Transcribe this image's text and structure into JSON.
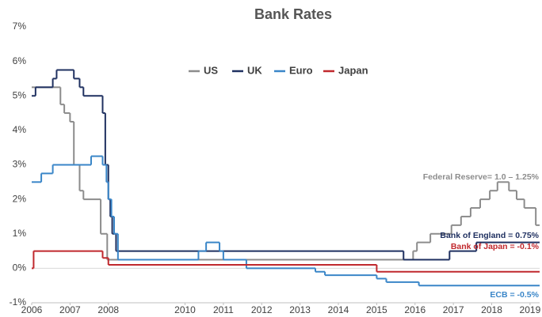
{
  "chart_data": {
    "type": "step-line",
    "title": "Bank Rates",
    "xlim": [
      2006,
      2019.25
    ],
    "xticks": [
      2006,
      2007,
      2008,
      2010,
      2011,
      2012,
      2013,
      2014,
      2015,
      2016,
      2017,
      2018,
      2019
    ],
    "ylim": [
      -1,
      7
    ],
    "yticks": [
      {
        "value": -1,
        "label": "-1%"
      },
      {
        "value": 0,
        "label": "0%"
      },
      {
        "value": 1,
        "label": "1%"
      },
      {
        "value": 2,
        "label": "2%"
      },
      {
        "value": 3,
        "label": "3%"
      },
      {
        "value": 4,
        "label": "4%"
      },
      {
        "value": 5,
        "label": "5%"
      },
      {
        "value": 6,
        "label": "6%"
      },
      {
        "value": 7,
        "label": "7%"
      }
    ],
    "grid": false,
    "legend": "top",
    "series": [
      {
        "name": "US",
        "color": "#8c8c8c",
        "x": [
          2006,
          2006.75,
          2006.85,
          2007.0,
          2007.1,
          2007.25,
          2007.35,
          2007.8,
          2007.97,
          2015.95,
          2016.05,
          2016.4,
          2016.95,
          2017.2,
          2017.45,
          2017.7,
          2017.95,
          2018.15,
          2018.45,
          2018.65,
          2018.85,
          2019.15
        ],
        "values": [
          5.25,
          4.75,
          4.5,
          4.25,
          3.0,
          2.25,
          2.0,
          1.0,
          0.25,
          0.5,
          0.75,
          1.0,
          1.25,
          1.5,
          1.75,
          2.0,
          2.25,
          2.5,
          2.25,
          2.0,
          1.75,
          1.25
        ]
      },
      {
        "name": "UK",
        "color": "#1f3060",
        "x": [
          2006,
          2006.1,
          2006.55,
          2006.65,
          2007.1,
          2007.25,
          2007.35,
          2007.85,
          2007.92,
          2008.0,
          2008.05,
          2008.1,
          2008.2,
          2015.7,
          2016.9,
          2017.6
        ],
        "values": [
          5.0,
          5.25,
          5.5,
          5.75,
          5.5,
          5.25,
          5.0,
          4.5,
          3.0,
          2.0,
          1.5,
          1.0,
          0.5,
          0.25,
          0.5,
          0.75
        ]
      },
      {
        "name": "Euro",
        "color": "#3a86c8",
        "x": [
          2006,
          2006.25,
          2006.55,
          2007.55,
          2007.85,
          2007.95,
          2008.0,
          2008.08,
          2008.15,
          2008.25,
          2010.35,
          2010.55,
          2010.9,
          2011.0,
          2011.6,
          2013.4,
          2013.65,
          2015.0,
          2015.25,
          2016.1
        ],
        "values": [
          2.5,
          2.75,
          3.0,
          3.25,
          3.0,
          2.5,
          2.0,
          1.5,
          1.0,
          0.25,
          0.5,
          0.75,
          0.5,
          0.25,
          0.0,
          -0.1,
          -0.2,
          -0.3,
          -0.4,
          -0.5
        ]
      },
      {
        "name": "Japan",
        "color": "#c0282d",
        "x": [
          2006,
          2006.05,
          2007.85,
          2008.0,
          2015.0
        ],
        "values": [
          0.0,
          0.5,
          0.3,
          0.1,
          -0.1
        ]
      }
    ],
    "annotations": [
      {
        "text": "Federal Reserve= 1.0 – 1.25%",
        "color": "#8c8c8c"
      },
      {
        "text": "Bank of England = 0.75%",
        "color": "#1f3060"
      },
      {
        "text": "Bank of Japan = -0.1%",
        "color": "#c0282d"
      },
      {
        "text": "ECB = -0.5%",
        "color": "#3a86c8"
      }
    ]
  }
}
